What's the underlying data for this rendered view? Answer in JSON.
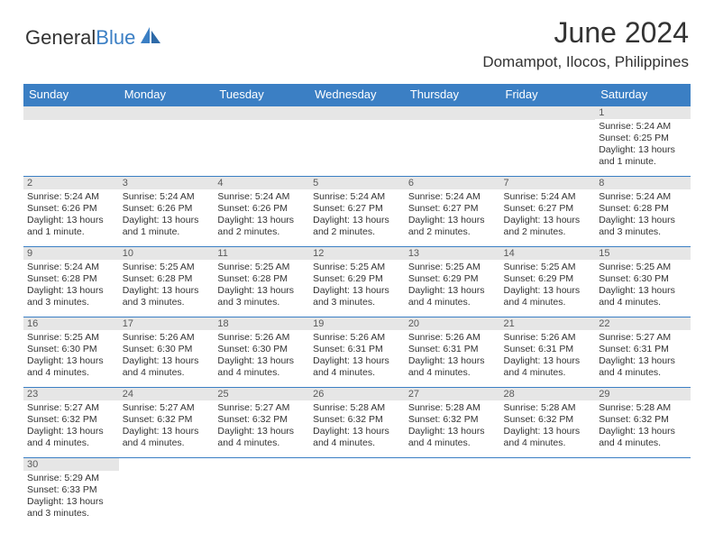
{
  "header": {
    "logo_text_1": "General",
    "logo_text_2": "Blue",
    "month_title": "June 2024",
    "location": "Domampot, Ilocos, Philippines"
  },
  "styling": {
    "header_bg": "#3b7fc4",
    "header_fg": "#ffffff",
    "daynum_bg": "#e6e6e6",
    "daynum_fg": "#595959",
    "cell_border": "#3b7fc4",
    "body_bg": "#ffffff",
    "text_color": "#333333",
    "logo_blue": "#3b7fc4",
    "month_title_fontsize": 32,
    "location_fontsize": 17,
    "dayheader_fontsize": 13,
    "daynum_fontsize": 11,
    "details_fontsize": 10.5
  },
  "calendar": {
    "day_headers": [
      "Sunday",
      "Monday",
      "Tuesday",
      "Wednesday",
      "Thursday",
      "Friday",
      "Saturday"
    ],
    "weeks": [
      [
        {
          "n": "",
          "sr": "",
          "ss": "",
          "dl": ""
        },
        {
          "n": "",
          "sr": "",
          "ss": "",
          "dl": ""
        },
        {
          "n": "",
          "sr": "",
          "ss": "",
          "dl": ""
        },
        {
          "n": "",
          "sr": "",
          "ss": "",
          "dl": ""
        },
        {
          "n": "",
          "sr": "",
          "ss": "",
          "dl": ""
        },
        {
          "n": "",
          "sr": "",
          "ss": "",
          "dl": ""
        },
        {
          "n": "1",
          "sr": "Sunrise: 5:24 AM",
          "ss": "Sunset: 6:25 PM",
          "dl": "Daylight: 13 hours and 1 minute."
        }
      ],
      [
        {
          "n": "2",
          "sr": "Sunrise: 5:24 AM",
          "ss": "Sunset: 6:26 PM",
          "dl": "Daylight: 13 hours and 1 minute."
        },
        {
          "n": "3",
          "sr": "Sunrise: 5:24 AM",
          "ss": "Sunset: 6:26 PM",
          "dl": "Daylight: 13 hours and 1 minute."
        },
        {
          "n": "4",
          "sr": "Sunrise: 5:24 AM",
          "ss": "Sunset: 6:26 PM",
          "dl": "Daylight: 13 hours and 2 minutes."
        },
        {
          "n": "5",
          "sr": "Sunrise: 5:24 AM",
          "ss": "Sunset: 6:27 PM",
          "dl": "Daylight: 13 hours and 2 minutes."
        },
        {
          "n": "6",
          "sr": "Sunrise: 5:24 AM",
          "ss": "Sunset: 6:27 PM",
          "dl": "Daylight: 13 hours and 2 minutes."
        },
        {
          "n": "7",
          "sr": "Sunrise: 5:24 AM",
          "ss": "Sunset: 6:27 PM",
          "dl": "Daylight: 13 hours and 2 minutes."
        },
        {
          "n": "8",
          "sr": "Sunrise: 5:24 AM",
          "ss": "Sunset: 6:28 PM",
          "dl": "Daylight: 13 hours and 3 minutes."
        }
      ],
      [
        {
          "n": "9",
          "sr": "Sunrise: 5:24 AM",
          "ss": "Sunset: 6:28 PM",
          "dl": "Daylight: 13 hours and 3 minutes."
        },
        {
          "n": "10",
          "sr": "Sunrise: 5:25 AM",
          "ss": "Sunset: 6:28 PM",
          "dl": "Daylight: 13 hours and 3 minutes."
        },
        {
          "n": "11",
          "sr": "Sunrise: 5:25 AM",
          "ss": "Sunset: 6:28 PM",
          "dl": "Daylight: 13 hours and 3 minutes."
        },
        {
          "n": "12",
          "sr": "Sunrise: 5:25 AM",
          "ss": "Sunset: 6:29 PM",
          "dl": "Daylight: 13 hours and 3 minutes."
        },
        {
          "n": "13",
          "sr": "Sunrise: 5:25 AM",
          "ss": "Sunset: 6:29 PM",
          "dl": "Daylight: 13 hours and 4 minutes."
        },
        {
          "n": "14",
          "sr": "Sunrise: 5:25 AM",
          "ss": "Sunset: 6:29 PM",
          "dl": "Daylight: 13 hours and 4 minutes."
        },
        {
          "n": "15",
          "sr": "Sunrise: 5:25 AM",
          "ss": "Sunset: 6:30 PM",
          "dl": "Daylight: 13 hours and 4 minutes."
        }
      ],
      [
        {
          "n": "16",
          "sr": "Sunrise: 5:25 AM",
          "ss": "Sunset: 6:30 PM",
          "dl": "Daylight: 13 hours and 4 minutes."
        },
        {
          "n": "17",
          "sr": "Sunrise: 5:26 AM",
          "ss": "Sunset: 6:30 PM",
          "dl": "Daylight: 13 hours and 4 minutes."
        },
        {
          "n": "18",
          "sr": "Sunrise: 5:26 AM",
          "ss": "Sunset: 6:30 PM",
          "dl": "Daylight: 13 hours and 4 minutes."
        },
        {
          "n": "19",
          "sr": "Sunrise: 5:26 AM",
          "ss": "Sunset: 6:31 PM",
          "dl": "Daylight: 13 hours and 4 minutes."
        },
        {
          "n": "20",
          "sr": "Sunrise: 5:26 AM",
          "ss": "Sunset: 6:31 PM",
          "dl": "Daylight: 13 hours and 4 minutes."
        },
        {
          "n": "21",
          "sr": "Sunrise: 5:26 AM",
          "ss": "Sunset: 6:31 PM",
          "dl": "Daylight: 13 hours and 4 minutes."
        },
        {
          "n": "22",
          "sr": "Sunrise: 5:27 AM",
          "ss": "Sunset: 6:31 PM",
          "dl": "Daylight: 13 hours and 4 minutes."
        }
      ],
      [
        {
          "n": "23",
          "sr": "Sunrise: 5:27 AM",
          "ss": "Sunset: 6:32 PM",
          "dl": "Daylight: 13 hours and 4 minutes."
        },
        {
          "n": "24",
          "sr": "Sunrise: 5:27 AM",
          "ss": "Sunset: 6:32 PM",
          "dl": "Daylight: 13 hours and 4 minutes."
        },
        {
          "n": "25",
          "sr": "Sunrise: 5:27 AM",
          "ss": "Sunset: 6:32 PM",
          "dl": "Daylight: 13 hours and 4 minutes."
        },
        {
          "n": "26",
          "sr": "Sunrise: 5:28 AM",
          "ss": "Sunset: 6:32 PM",
          "dl": "Daylight: 13 hours and 4 minutes."
        },
        {
          "n": "27",
          "sr": "Sunrise: 5:28 AM",
          "ss": "Sunset: 6:32 PM",
          "dl": "Daylight: 13 hours and 4 minutes."
        },
        {
          "n": "28",
          "sr": "Sunrise: 5:28 AM",
          "ss": "Sunset: 6:32 PM",
          "dl": "Daylight: 13 hours and 4 minutes."
        },
        {
          "n": "29",
          "sr": "Sunrise: 5:28 AM",
          "ss": "Sunset: 6:32 PM",
          "dl": "Daylight: 13 hours and 4 minutes."
        }
      ],
      [
        {
          "n": "30",
          "sr": "Sunrise: 5:29 AM",
          "ss": "Sunset: 6:33 PM",
          "dl": "Daylight: 13 hours and 3 minutes."
        },
        {
          "n": "",
          "sr": "",
          "ss": "",
          "dl": ""
        },
        {
          "n": "",
          "sr": "",
          "ss": "",
          "dl": ""
        },
        {
          "n": "",
          "sr": "",
          "ss": "",
          "dl": ""
        },
        {
          "n": "",
          "sr": "",
          "ss": "",
          "dl": ""
        },
        {
          "n": "",
          "sr": "",
          "ss": "",
          "dl": ""
        },
        {
          "n": "",
          "sr": "",
          "ss": "",
          "dl": ""
        }
      ]
    ]
  }
}
